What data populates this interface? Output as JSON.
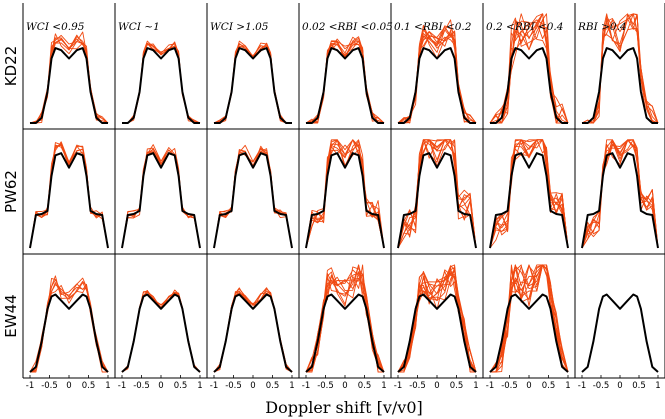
{
  "chart_data": {
    "type": "line",
    "columns": [
      "WCI <0.95",
      "WCI ~1",
      "WCI >1.05",
      "0.02 <RBI <0.05",
      "0.1 <RBI <0.2",
      "0.2 <RBI <0.4",
      "RBI >0.4"
    ],
    "rows": [
      "KD22",
      "PW62",
      "EW44"
    ],
    "xlabel": "Doppler shift [v/v0]",
    "xlim": [
      -1,
      1
    ],
    "xticks": [
      "-1",
      "-0.5",
      "0",
      "0.5",
      "1"
    ],
    "reference_color": "#000000",
    "variant_color": "#f04a12",
    "x": [
      -1,
      -0.85,
      -0.7,
      -0.55,
      -0.45,
      -0.35,
      -0.2,
      0,
      0.2,
      0.35,
      0.45,
      0.55,
      0.7,
      0.85,
      1
    ],
    "panels": {
      "KD22": {
        "reference": [
          0,
          0,
          0.05,
          0.3,
          0.62,
          0.72,
          0.7,
          0.62,
          0.7,
          0.72,
          0.62,
          0.3,
          0.05,
          0,
          0
        ],
        "variants": {
          "WCI <0.95": {
            "count": 7,
            "spread": 0.06,
            "tilt": 0,
            "peak": 0.08
          },
          "WCI ~1": {
            "count": 6,
            "spread": 0.03,
            "tilt": 0,
            "peak": 0.03
          },
          "WCI >1.05": {
            "count": 6,
            "spread": 0.03,
            "tilt": 0,
            "peak": 0.03
          },
          "0.02 <RBI <0.05": {
            "count": 8,
            "spread": 0.05,
            "tilt": 0.05,
            "peak": 0.06
          },
          "0.1 <RBI <0.2": {
            "count": 10,
            "spread": 0.08,
            "tilt": 0.15,
            "peak": 0.12
          },
          "0.2 <RBI <0.4": {
            "count": 10,
            "spread": 0.15,
            "tilt": 0.3,
            "peak": 0.2
          },
          "RBI >0.4": {
            "count": 8,
            "spread": 0.12,
            "tilt": 0.45,
            "peak": 0.25
          }
        }
      },
      "PW62": {
        "reference": [
          0,
          0.32,
          0.33,
          0.36,
          0.7,
          0.9,
          0.92,
          0.78,
          0.92,
          0.9,
          0.7,
          0.36,
          0.33,
          0.32,
          0
        ],
        "variants": {
          "WCI <0.95": {
            "count": 6,
            "spread": 0.04,
            "tilt": 0,
            "peak": 0.06
          },
          "WCI ~1": {
            "count": 6,
            "spread": 0.04,
            "tilt": 0,
            "peak": 0.03
          },
          "WCI >1.05": {
            "count": 6,
            "spread": 0.04,
            "tilt": 0,
            "peak": 0.03
          },
          "0.02 <RBI <0.05": {
            "count": 9,
            "spread": 0.1,
            "tilt": 0.1,
            "peak": 0.1
          },
          "0.1 <RBI <0.2": {
            "count": 10,
            "spread": 0.15,
            "tilt": 0.25,
            "peak": 0.18
          },
          "0.2 <RBI <0.4": {
            "count": 10,
            "spread": 0.12,
            "tilt": 0.3,
            "peak": 0.15
          },
          "RBI >0.4": {
            "count": 9,
            "spread": 0.1,
            "tilt": 0.35,
            "peak": 0.1
          }
        }
      },
      "EW44": {
        "reference": [
          0,
          0.05,
          0.3,
          0.62,
          0.74,
          0.76,
          0.7,
          0.62,
          0.7,
          0.76,
          0.74,
          0.62,
          0.3,
          0.05,
          0
        ],
        "variants": {
          "WCI <0.95": {
            "count": 6,
            "spread": 0.06,
            "tilt": 0,
            "peak": 0.1
          },
          "WCI ~1": {
            "count": 6,
            "spread": 0.02,
            "tilt": 0,
            "peak": 0.02
          },
          "WCI >1.05": {
            "count": 6,
            "spread": 0.03,
            "tilt": 0,
            "peak": 0.03
          },
          "0.02 <RBI <0.05": {
            "count": 10,
            "spread": 0.12,
            "tilt": 0.1,
            "peak": 0.15
          },
          "0.1 <RBI <0.2": {
            "count": 12,
            "spread": 0.12,
            "tilt": 0.3,
            "peak": 0.15
          },
          "0.2 <RBI <0.4": {
            "count": 12,
            "spread": 0.15,
            "tilt": 0.45,
            "peak": 0.25
          },
          "RBI >0.4": {
            "count": 0,
            "spread": 0,
            "tilt": 0,
            "peak": 0
          }
        }
      }
    }
  }
}
